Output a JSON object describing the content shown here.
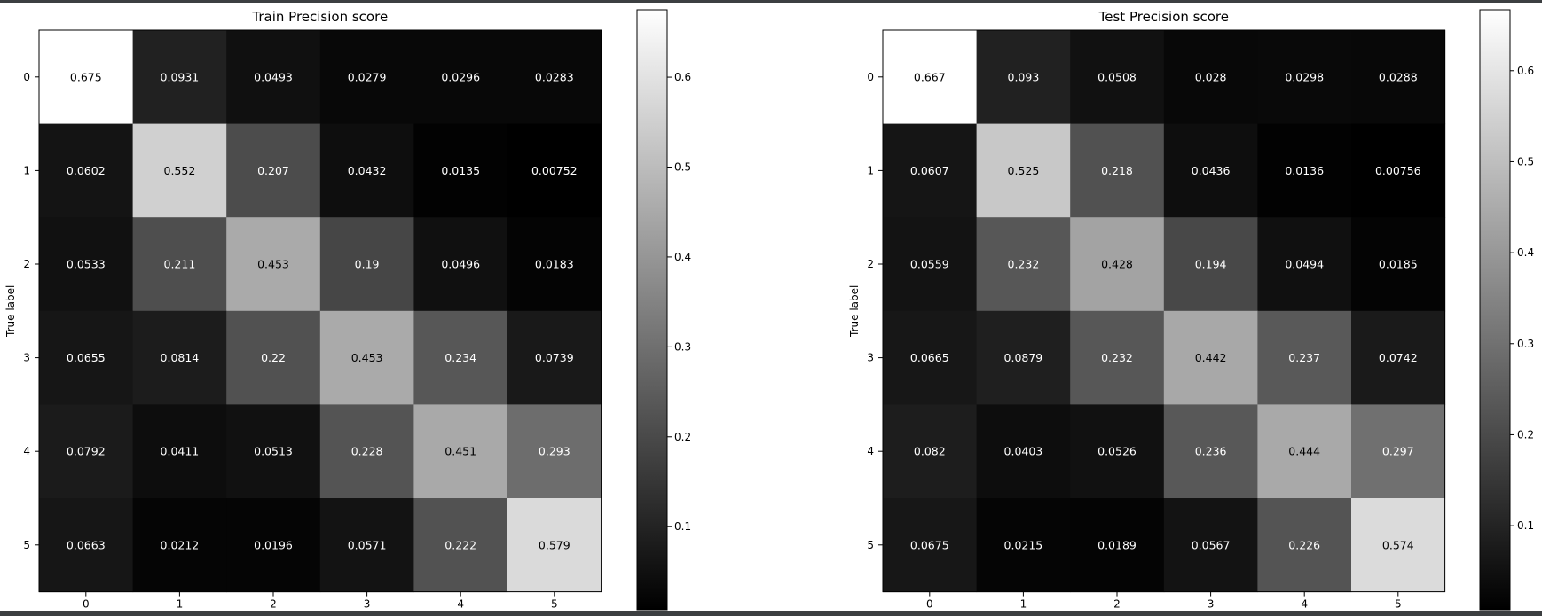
{
  "chart_data": [
    {
      "type": "heatmap",
      "title": "Train Precision score",
      "ylabel": "True label",
      "xlabel": "",
      "x_ticks": [
        "0",
        "1",
        "2",
        "3",
        "4",
        "5"
      ],
      "y_ticks": [
        "0",
        "1",
        "2",
        "3",
        "4",
        "5"
      ],
      "cells": [
        [
          0.675,
          0.0931,
          0.0493,
          0.0279,
          0.0296,
          0.0283
        ],
        [
          0.0602,
          0.552,
          0.207,
          0.0432,
          0.0135,
          0.00752
        ],
        [
          0.0533,
          0.211,
          0.453,
          0.19,
          0.0496,
          0.0183
        ],
        [
          0.0655,
          0.0814,
          0.22,
          0.453,
          0.234,
          0.0739
        ],
        [
          0.0792,
          0.0411,
          0.0513,
          0.228,
          0.451,
          0.293
        ],
        [
          0.0663,
          0.0212,
          0.0196,
          0.0571,
          0.222,
          0.579
        ]
      ],
      "cell_labels": [
        [
          "0.675",
          "0.0931",
          "0.0493",
          "0.0279",
          "0.0296",
          "0.0283"
        ],
        [
          "0.0602",
          "0.552",
          "0.207",
          "0.0432",
          "0.0135",
          "0.00752"
        ],
        [
          "0.0533",
          "0.211",
          "0.453",
          "0.19",
          "0.0496",
          "0.0183"
        ],
        [
          "0.0655",
          "0.0814",
          "0.22",
          "0.453",
          "0.234",
          "0.0739"
        ],
        [
          "0.0792",
          "0.0411",
          "0.0513",
          "0.228",
          "0.451",
          "0.293"
        ],
        [
          "0.0663",
          "0.0212",
          "0.0196",
          "0.0571",
          "0.222",
          "0.579"
        ]
      ],
      "colormap": "gray",
      "vmin": 0.00752,
      "vmax": 0.675,
      "colorbar_ticks": [
        0.1,
        0.2,
        0.3,
        0.4,
        0.5,
        0.6
      ],
      "colorbar_tick_labels": [
        "0.1",
        "0.2",
        "0.3",
        "0.4",
        "0.5",
        "0.6"
      ]
    },
    {
      "type": "heatmap",
      "title": "Test Precision score",
      "ylabel": "True label",
      "xlabel": "",
      "x_ticks": [
        "0",
        "1",
        "2",
        "3",
        "4",
        "5"
      ],
      "y_ticks": [
        "0",
        "1",
        "2",
        "3",
        "4",
        "5"
      ],
      "cells": [
        [
          0.667,
          0.093,
          0.0508,
          0.028,
          0.0298,
          0.0288
        ],
        [
          0.0607,
          0.525,
          0.218,
          0.0436,
          0.0136,
          0.00756
        ],
        [
          0.0559,
          0.232,
          0.428,
          0.194,
          0.0494,
          0.0185
        ],
        [
          0.0665,
          0.0879,
          0.232,
          0.442,
          0.237,
          0.0742
        ],
        [
          0.082,
          0.0403,
          0.0526,
          0.236,
          0.444,
          0.297
        ],
        [
          0.0675,
          0.0215,
          0.0189,
          0.0567,
          0.226,
          0.574
        ]
      ],
      "cell_labels": [
        [
          "0.667",
          "0.093",
          "0.0508",
          "0.028",
          "0.0298",
          "0.0288"
        ],
        [
          "0.0607",
          "0.525",
          "0.218",
          "0.0436",
          "0.0136",
          "0.00756"
        ],
        [
          "0.0559",
          "0.232",
          "0.428",
          "0.194",
          "0.0494",
          "0.0185"
        ],
        [
          "0.0665",
          "0.0879",
          "0.232",
          "0.442",
          "0.237",
          "0.0742"
        ],
        [
          "0.082",
          "0.0403",
          "0.0526",
          "0.236",
          "0.444",
          "0.297"
        ],
        [
          "0.0675",
          "0.0215",
          "0.0189",
          "0.0567",
          "0.226",
          "0.574"
        ]
      ],
      "colormap": "gray",
      "vmin": 0.00756,
      "vmax": 0.667,
      "colorbar_ticks": [
        0.1,
        0.2,
        0.3,
        0.4,
        0.5,
        0.6
      ],
      "colorbar_tick_labels": [
        "0.1",
        "0.2",
        "0.3",
        "0.4",
        "0.5",
        "0.6"
      ]
    }
  ]
}
